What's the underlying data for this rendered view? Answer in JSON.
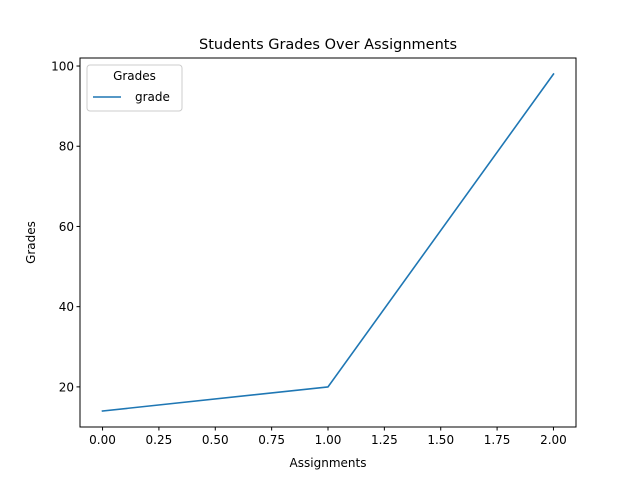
{
  "chart_data": {
    "type": "line",
    "title": "Students Grades Over Assignments",
    "xlabel": "Assignments",
    "ylabel": "Grades",
    "xlim": [
      -0.1,
      2.1
    ],
    "ylim": [
      10,
      102
    ],
    "xticks": [
      "0.00",
      "0.25",
      "0.50",
      "0.75",
      "1.00",
      "1.25",
      "1.50",
      "1.75",
      "2.00"
    ],
    "xtick_values": [
      0,
      0.25,
      0.5,
      0.75,
      1.0,
      1.25,
      1.5,
      1.75,
      2.0
    ],
    "yticks": [
      "20",
      "40",
      "60",
      "80",
      "100"
    ],
    "ytick_values": [
      20,
      40,
      60,
      80,
      100
    ],
    "grid": false,
    "legend": {
      "title": "Grades",
      "placement": "top-left"
    },
    "series": [
      {
        "name": "grade",
        "color": "#1f77b4",
        "x": [
          0,
          1,
          2
        ],
        "y": [
          14,
          20,
          98
        ]
      }
    ]
  }
}
